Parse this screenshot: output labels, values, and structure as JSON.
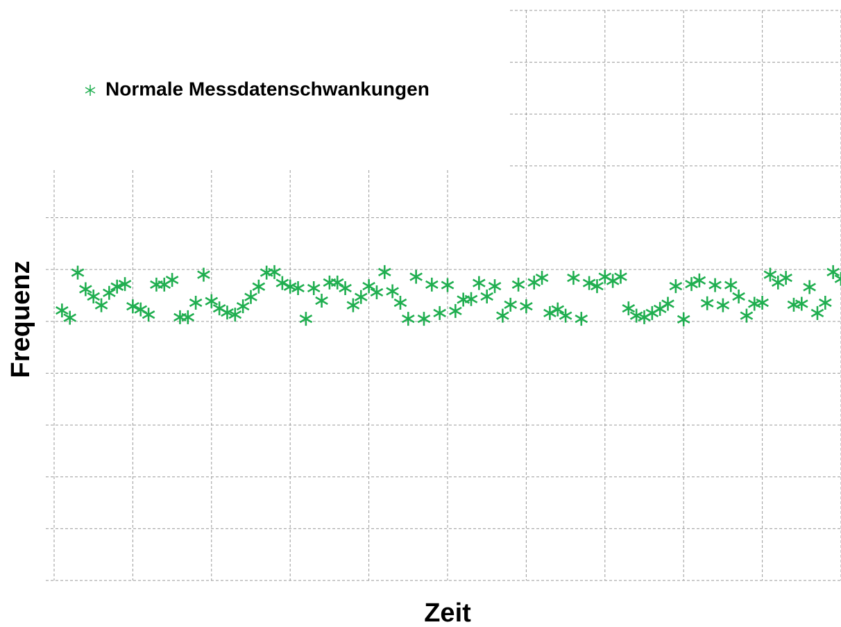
{
  "chart_data": {
    "type": "scatter",
    "xlabel": "Zeit",
    "ylabel": "Frequenz",
    "x": [
      0.1,
      0.2,
      0.3,
      0.4,
      0.5,
      0.6,
      0.7,
      0.8,
      0.9,
      1.0,
      1.1,
      1.2,
      1.3,
      1.4,
      1.5,
      1.6,
      1.7,
      1.8,
      1.9,
      2.0,
      2.1,
      2.2,
      2.3,
      2.4,
      2.5,
      2.6,
      2.7,
      2.8,
      2.9,
      3.0,
      3.1,
      3.2,
      3.3,
      3.4,
      3.5,
      3.6,
      3.7,
      3.8,
      3.9,
      4.0,
      4.1,
      4.2,
      4.3,
      4.4,
      4.5,
      4.6,
      4.7,
      4.8,
      4.9,
      5.0,
      5.1,
      5.2,
      5.3,
      5.4,
      5.5,
      5.6,
      5.7,
      5.8,
      5.9,
      6.0,
      6.1,
      6.2,
      6.3,
      6.4,
      6.5,
      6.6,
      6.7,
      6.8,
      6.9,
      7.0,
      7.1,
      7.2,
      7.3,
      7.4,
      7.5,
      7.6,
      7.7,
      7.8,
      7.9,
      8.0,
      8.1,
      8.2,
      8.3,
      8.4,
      8.5,
      8.6,
      8.7,
      8.8,
      8.9,
      9.0,
      9.1,
      9.2,
      9.3,
      9.4,
      9.5,
      9.6,
      9.7,
      9.8,
      9.9,
      10.0
    ],
    "series": [
      {
        "name": "Normale Messdatenschwankungen",
        "color": "#1fae4f",
        "values": [
          5.21,
          5.07,
          5.94,
          5.62,
          5.48,
          5.31,
          5.55,
          5.67,
          5.72,
          5.29,
          5.23,
          5.13,
          5.71,
          5.71,
          5.8,
          5.08,
          5.08,
          5.36,
          5.9,
          5.39,
          5.25,
          5.17,
          5.13,
          5.29,
          5.47,
          5.67,
          5.94,
          5.95,
          5.74,
          5.67,
          5.64,
          5.05,
          5.64,
          5.4,
          5.75,
          5.75,
          5.64,
          5.31,
          5.47,
          5.68,
          5.56,
          5.95,
          5.58,
          5.36,
          5.05,
          5.86,
          5.05,
          5.71,
          5.16,
          5.7,
          5.2,
          5.42,
          5.43,
          5.74,
          5.48,
          5.68,
          5.11,
          5.32,
          5.71,
          5.29,
          5.75,
          5.84,
          5.16,
          5.23,
          5.11,
          5.84,
          5.05,
          5.74,
          5.68,
          5.86,
          5.78,
          5.86,
          5.25,
          5.11,
          5.08,
          5.16,
          5.24,
          5.34,
          5.68,
          5.04,
          5.72,
          5.79,
          5.35,
          5.7,
          5.31,
          5.7,
          5.48,
          5.11,
          5.34,
          5.36,
          5.9,
          5.75,
          5.84,
          5.32,
          5.34,
          5.66,
          5.16,
          5.36,
          5.95,
          5.82
        ]
      }
    ],
    "xlim": [
      0,
      10
    ],
    "ylim": [
      0,
      11
    ],
    "xticks": [
      0,
      1,
      2,
      3,
      4,
      5,
      6,
      7,
      8,
      9,
      10
    ],
    "yticks": [
      0,
      1,
      2,
      3,
      4,
      5,
      6,
      7,
      8,
      9,
      10,
      11
    ],
    "grid": true,
    "legend": "upper left"
  }
}
